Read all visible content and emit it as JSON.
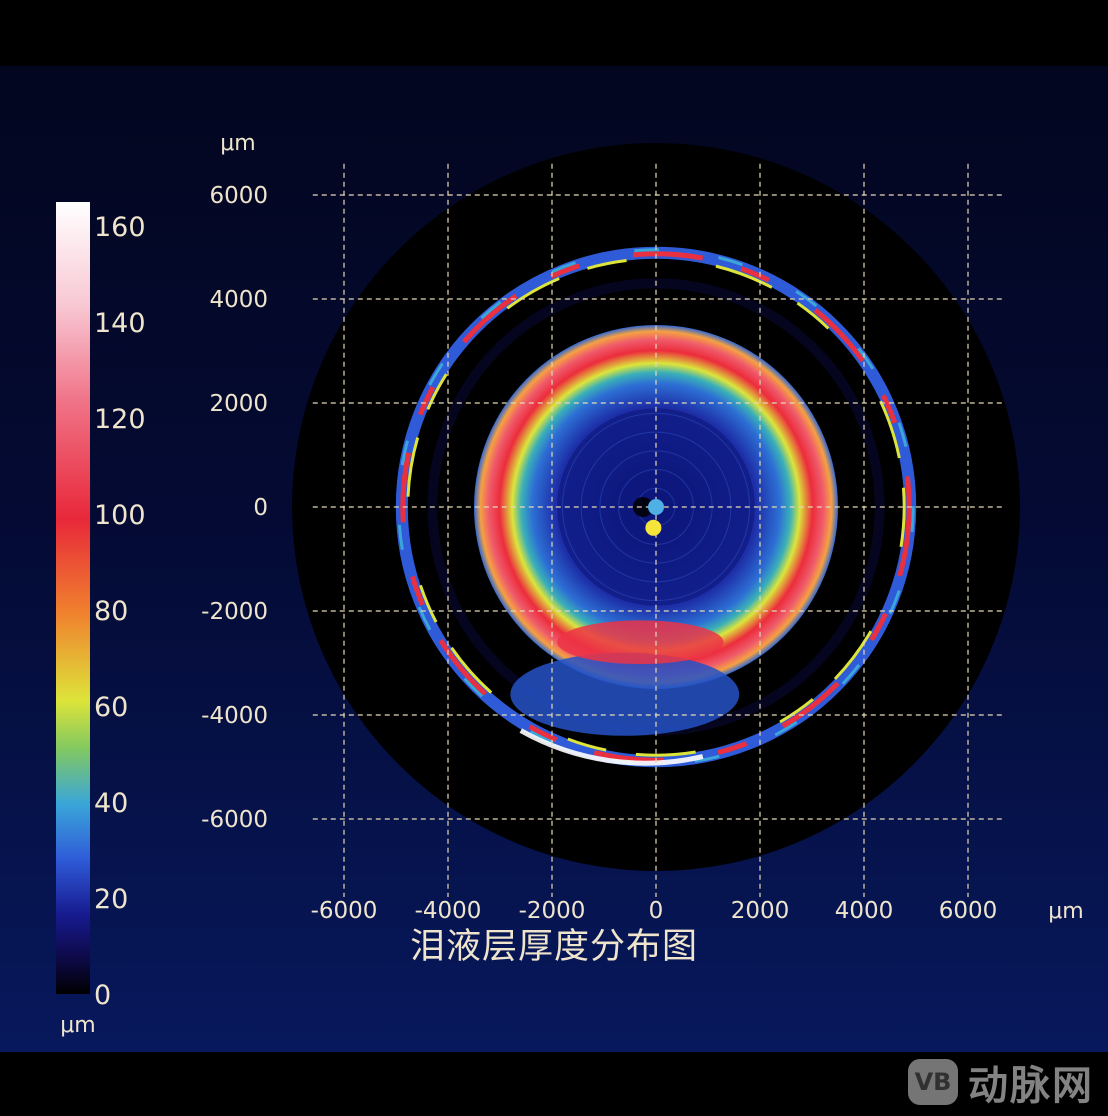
{
  "chart_data": {
    "type": "heatmap",
    "title": "泪液层厚度分布图",
    "x_unit": "μm",
    "y_unit": "μm",
    "xlim": [
      -6000,
      6000
    ],
    "ylim": [
      -6000,
      6000
    ],
    "x_ticks": [
      "-6000",
      "-4000",
      "-2000",
      "0",
      "2000",
      "4000",
      "6000"
    ],
    "y_ticks": [
      "6000",
      "4000",
      "2000",
      "0",
      "-2000",
      "-4000",
      "-6000"
    ],
    "x_tick_values": [
      -6000,
      -4000,
      -2000,
      0,
      2000,
      4000,
      6000
    ],
    "y_tick_values": [
      6000,
      4000,
      2000,
      0,
      -2000,
      -4000,
      -6000
    ],
    "grid": true,
    "colorbar": {
      "unit": "μm",
      "range": [
        0,
        165
      ],
      "ticks": [
        "0",
        "20",
        "40",
        "60",
        "80",
        "100",
        "120",
        "140",
        "160"
      ],
      "tick_values": [
        0,
        20,
        40,
        60,
        80,
        100,
        120,
        140,
        160
      ]
    },
    "rings": [
      {
        "name": "central-zone",
        "r_um": 1900,
        "thickness_um": 8
      },
      {
        "name": "inner-ring",
        "r_um": 2750,
        "thickness_um": 105
      },
      {
        "name": "outer-ring",
        "r_um": 4850,
        "thickness_um": 95
      }
    ],
    "markers": [
      {
        "name": "blue-marker",
        "x": 0,
        "y": 0,
        "color": "#4fb0e6"
      },
      {
        "name": "yellow-marker",
        "x": -50,
        "y": -400,
        "color": "#f5e43a"
      }
    ]
  },
  "watermark": {
    "logo_text": "VB",
    "text": "动脉网"
  }
}
